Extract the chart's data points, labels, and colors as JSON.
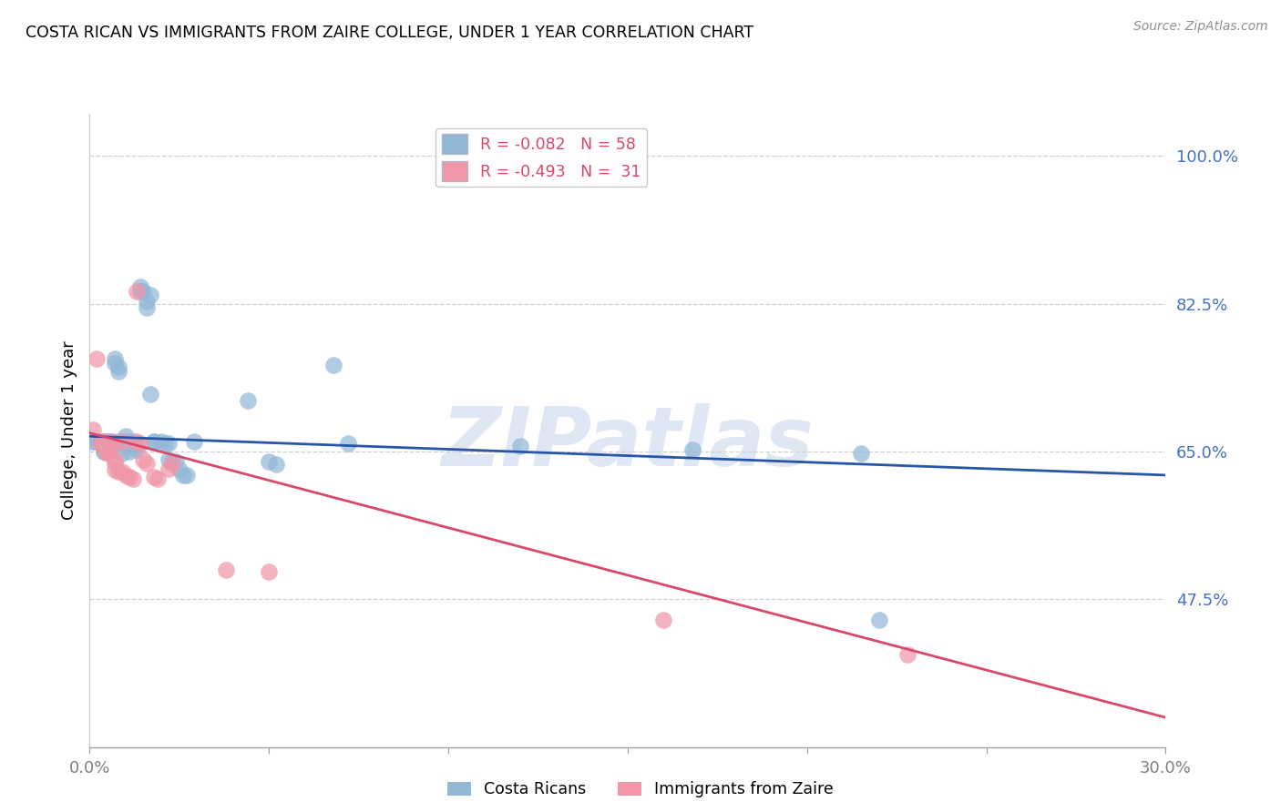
{
  "title": "COSTA RICAN VS IMMIGRANTS FROM ZAIRE COLLEGE, UNDER 1 YEAR CORRELATION CHART",
  "source": "Source: ZipAtlas.com",
  "ylabel": "College, Under 1 year",
  "xlim": [
    0.0,
    0.3
  ],
  "ylim": [
    0.3,
    1.05
  ],
  "yticks": [
    0.475,
    0.65,
    0.825,
    1.0
  ],
  "ytick_labels": [
    "47.5%",
    "65.0%",
    "82.5%",
    "100.0%"
  ],
  "xtick_positions": [
    0.0,
    0.05,
    0.1,
    0.15,
    0.2,
    0.25,
    0.3
  ],
  "blue_color": "#92b8d8",
  "pink_color": "#f096a8",
  "blue_line_color": "#2855a8",
  "pink_line_color": "#d84868",
  "tick_color": "#4472c4",
  "watermark_color": "#c8d8ec",
  "grid_color": "#d0d0d0",
  "blue_points": [
    [
      0.001,
      0.662
    ],
    [
      0.002,
      0.662
    ],
    [
      0.003,
      0.662
    ],
    [
      0.003,
      0.662
    ],
    [
      0.004,
      0.662
    ],
    [
      0.004,
      0.662
    ],
    [
      0.004,
      0.65
    ],
    [
      0.004,
      0.65
    ],
    [
      0.005,
      0.662
    ],
    [
      0.005,
      0.662
    ],
    [
      0.005,
      0.662
    ],
    [
      0.006,
      0.662
    ],
    [
      0.006,
      0.662
    ],
    [
      0.006,
      0.654
    ],
    [
      0.007,
      0.76
    ],
    [
      0.007,
      0.755
    ],
    [
      0.008,
      0.75
    ],
    [
      0.008,
      0.745
    ],
    [
      0.008,
      0.662
    ],
    [
      0.009,
      0.648
    ],
    [
      0.009,
      0.662
    ],
    [
      0.01,
      0.668
    ],
    [
      0.01,
      0.658
    ],
    [
      0.01,
      0.662
    ],
    [
      0.011,
      0.65
    ],
    [
      0.011,
      0.662
    ],
    [
      0.012,
      0.656
    ],
    [
      0.012,
      0.662
    ],
    [
      0.013,
      0.658
    ],
    [
      0.013,
      0.652
    ],
    [
      0.014,
      0.845
    ],
    [
      0.014,
      0.84
    ],
    [
      0.015,
      0.84
    ],
    [
      0.016,
      0.828
    ],
    [
      0.016,
      0.82
    ],
    [
      0.017,
      0.718
    ],
    [
      0.017,
      0.835
    ],
    [
      0.018,
      0.662
    ],
    [
      0.018,
      0.662
    ],
    [
      0.02,
      0.662
    ],
    [
      0.021,
      0.66
    ],
    [
      0.022,
      0.66
    ],
    [
      0.022,
      0.64
    ],
    [
      0.023,
      0.638
    ],
    [
      0.024,
      0.638
    ],
    [
      0.025,
      0.628
    ],
    [
      0.026,
      0.622
    ],
    [
      0.027,
      0.622
    ],
    [
      0.029,
      0.662
    ],
    [
      0.044,
      0.71
    ],
    [
      0.05,
      0.638
    ],
    [
      0.052,
      0.635
    ],
    [
      0.068,
      0.752
    ],
    [
      0.072,
      0.66
    ],
    [
      0.12,
      0.656
    ],
    [
      0.168,
      0.652
    ],
    [
      0.215,
      0.648
    ],
    [
      0.22,
      0.45
    ]
  ],
  "pink_points": [
    [
      0.001,
      0.676
    ],
    [
      0.002,
      0.76
    ],
    [
      0.003,
      0.66
    ],
    [
      0.004,
      0.654
    ],
    [
      0.004,
      0.662
    ],
    [
      0.005,
      0.65
    ],
    [
      0.005,
      0.648
    ],
    [
      0.006,
      0.662
    ],
    [
      0.006,
      0.656
    ],
    [
      0.007,
      0.64
    ],
    [
      0.007,
      0.636
    ],
    [
      0.007,
      0.628
    ],
    [
      0.008,
      0.626
    ],
    [
      0.009,
      0.626
    ],
    [
      0.009,
      0.662
    ],
    [
      0.01,
      0.622
    ],
    [
      0.011,
      0.62
    ],
    [
      0.012,
      0.618
    ],
    [
      0.013,
      0.84
    ],
    [
      0.013,
      0.662
    ],
    [
      0.014,
      0.66
    ],
    [
      0.015,
      0.64
    ],
    [
      0.016,
      0.636
    ],
    [
      0.018,
      0.62
    ],
    [
      0.019,
      0.618
    ],
    [
      0.022,
      0.63
    ],
    [
      0.023,
      0.636
    ],
    [
      0.038,
      0.51
    ],
    [
      0.05,
      0.508
    ],
    [
      0.16,
      0.45
    ],
    [
      0.228,
      0.41
    ]
  ],
  "blue_line_x": [
    0.0,
    0.3
  ],
  "blue_line_y": [
    0.668,
    0.622
  ],
  "pink_line_x": [
    0.0,
    0.3
  ],
  "pink_line_y": [
    0.672,
    0.335
  ]
}
